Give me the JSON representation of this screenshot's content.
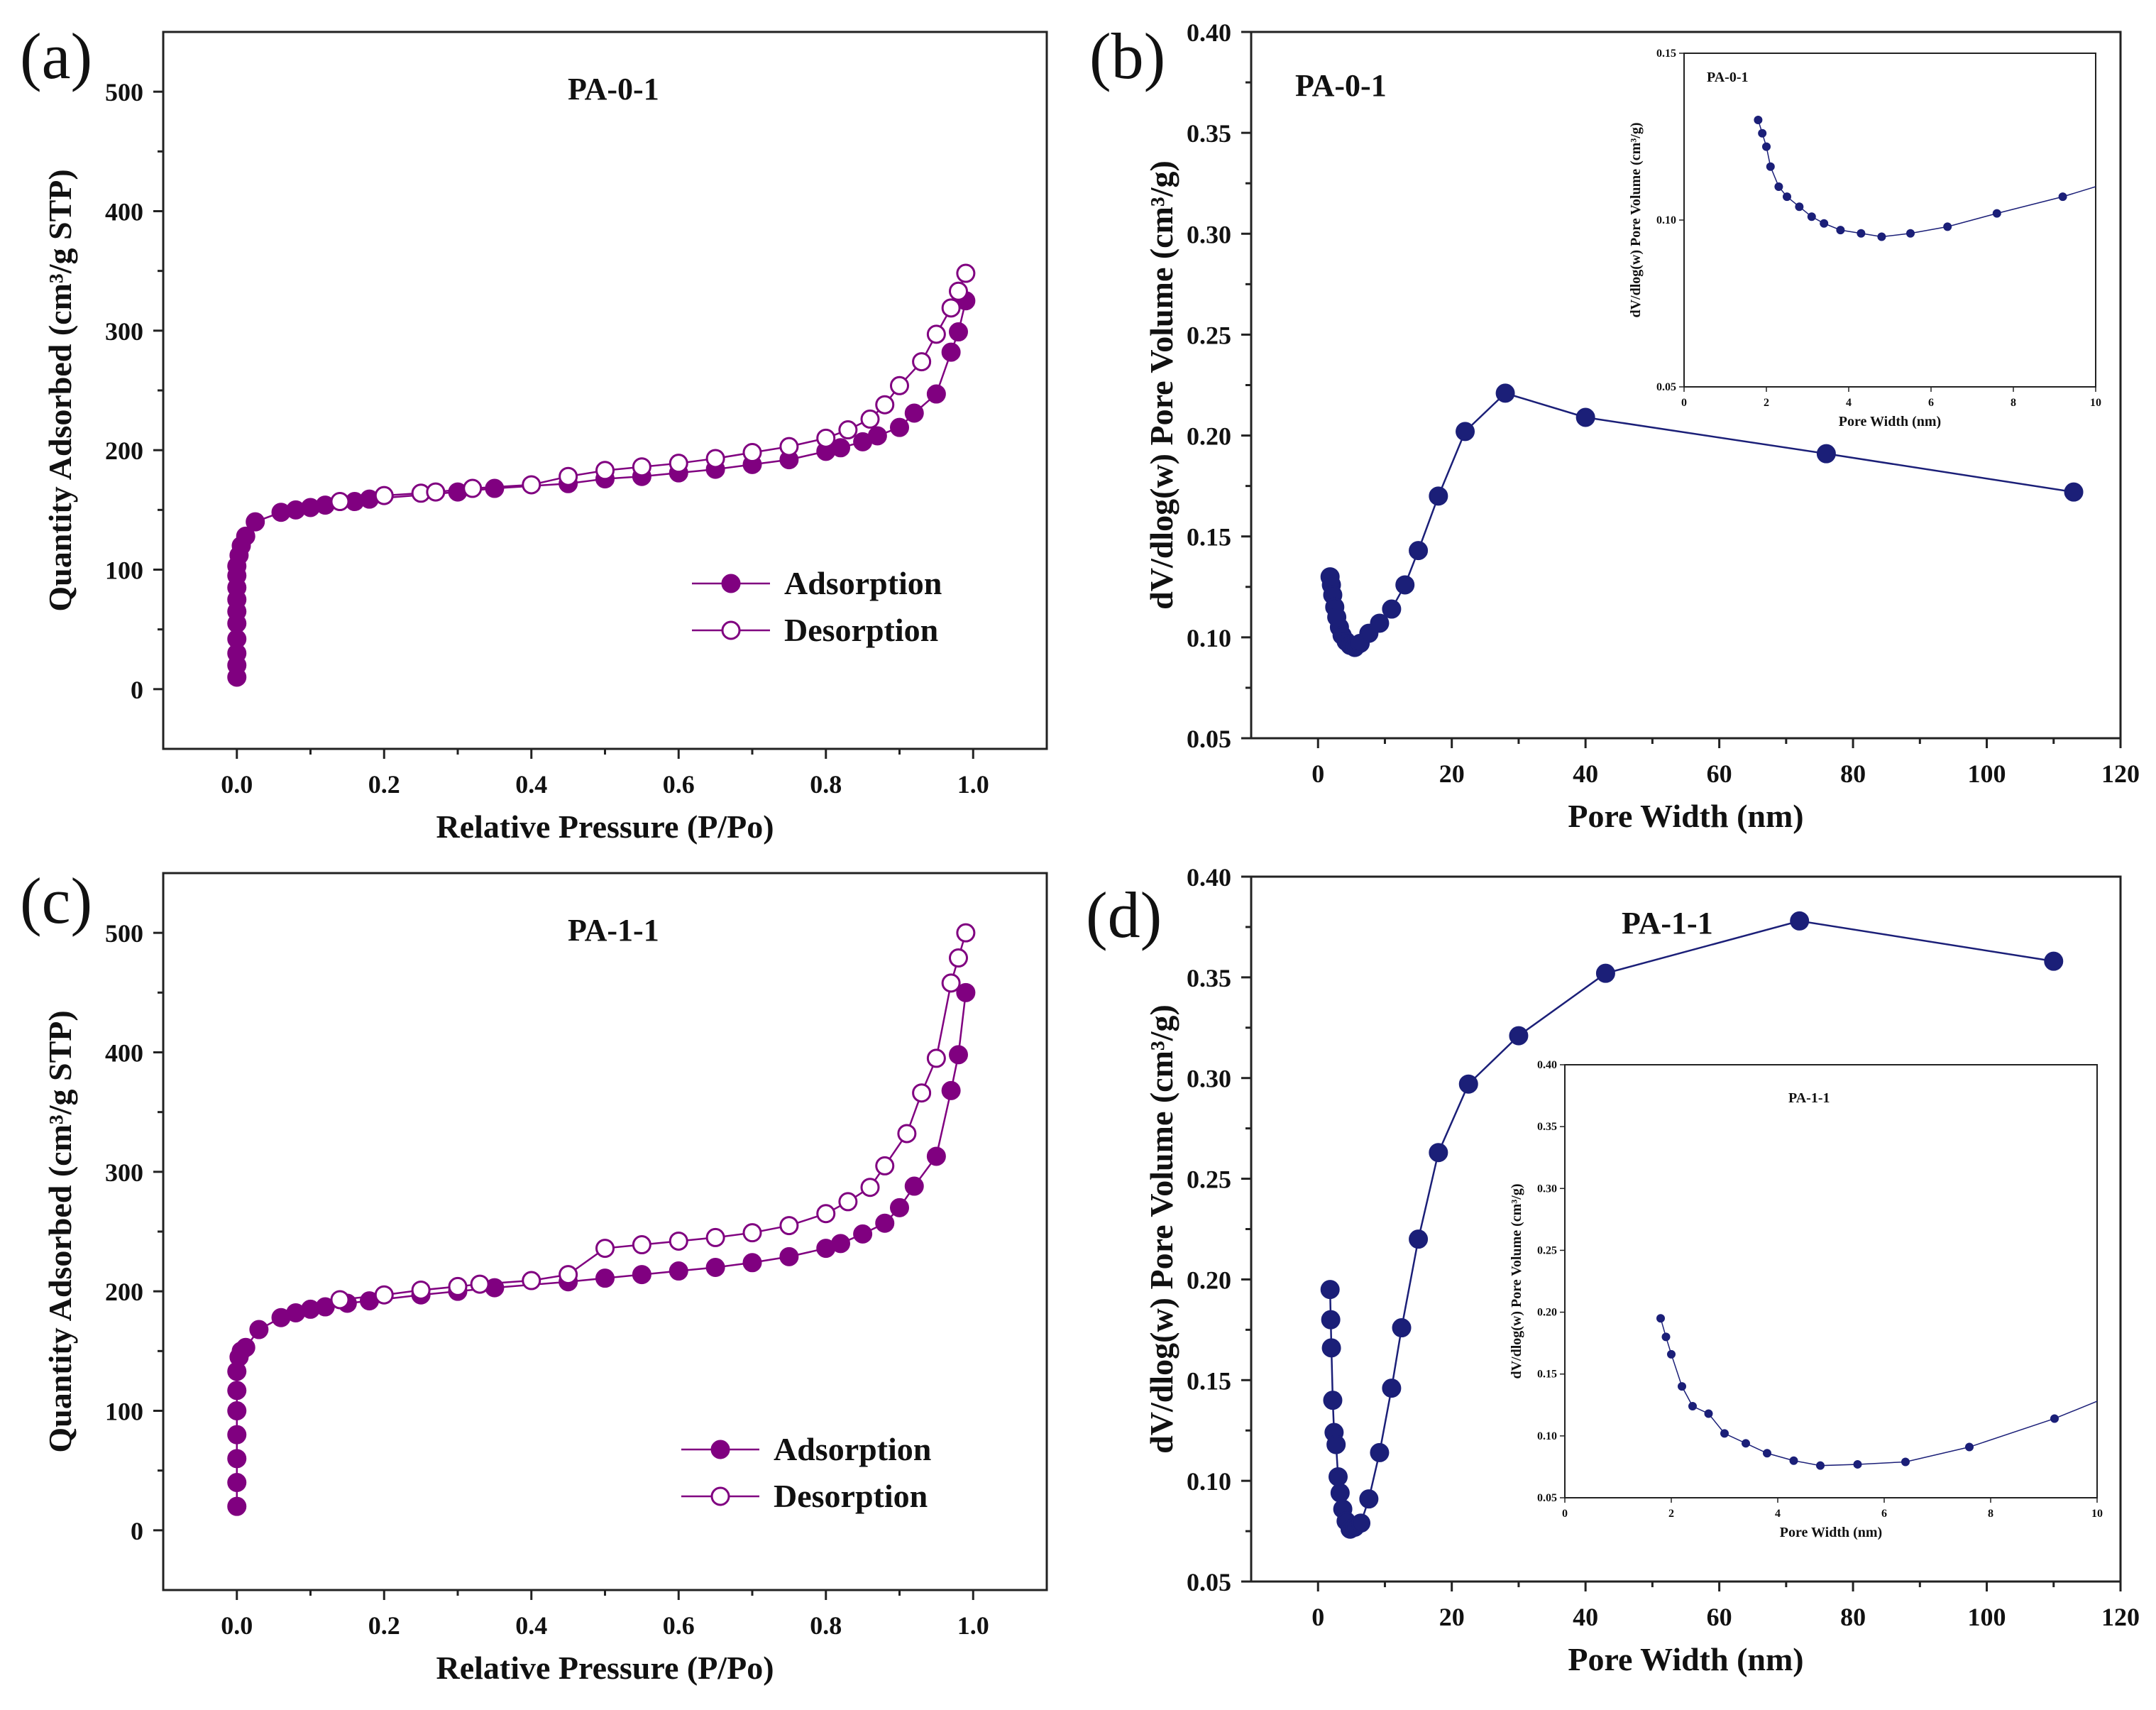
{
  "colors": {
    "iso": "#800080",
    "pore": "#1b1f78"
  },
  "chart_data": [
    {
      "id": "a",
      "letter": "(a)",
      "type": "scatter",
      "title": "PA-0-1",
      "xlabel": "Relative Pressure (P/Po)",
      "ylabel": "Quantity Adsorbed (cm³/g STP)",
      "xlim": [
        -0.1,
        1.1
      ],
      "ylim": [
        -50,
        550
      ],
      "xticks": [
        0.0,
        0.2,
        0.4,
        0.6,
        0.8,
        1.0
      ],
      "yticks": [
        0,
        100,
        200,
        300,
        400,
        500
      ],
      "legend": {
        "position": "lower-right",
        "entries": [
          "Adsorption",
          "Desorption"
        ]
      },
      "series": [
        {
          "name": "Adsorption",
          "marker": "filled",
          "x": [
            0.0,
            0.0,
            0.0,
            0.0,
            0.0,
            0.0,
            0.0,
            0.0,
            0.0,
            0.0,
            0.003,
            0.006,
            0.012,
            0.025,
            0.06,
            0.08,
            0.1,
            0.12,
            0.16,
            0.18,
            0.3,
            0.35,
            0.45,
            0.5,
            0.55,
            0.6,
            0.65,
            0.7,
            0.75,
            0.8,
            0.82,
            0.85,
            0.87,
            0.9,
            0.92,
            0.95,
            0.97,
            0.98,
            0.99
          ],
          "y": [
            10,
            20,
            30,
            42,
            55,
            65,
            75,
            85,
            95,
            103,
            112,
            120,
            128,
            140,
            148,
            150,
            152,
            154,
            157,
            159,
            165,
            168,
            172,
            176,
            178,
            181,
            184,
            188,
            192,
            199,
            202,
            207,
            212,
            219,
            231,
            247,
            282,
            299,
            325
          ]
        },
        {
          "name": "Desorption",
          "marker": "open",
          "x": [
            0.14,
            0.2,
            0.25,
            0.27,
            0.32,
            0.4,
            0.45,
            0.5,
            0.55,
            0.6,
            0.65,
            0.7,
            0.75,
            0.8,
            0.83,
            0.86,
            0.88,
            0.9,
            0.93,
            0.95,
            0.97,
            0.98,
            0.99
          ],
          "y": [
            157,
            162,
            164,
            165,
            168,
            171,
            178,
            183,
            186,
            189,
            193,
            198,
            203,
            210,
            217,
            226,
            238,
            254,
            274,
            297,
            319,
            333,
            348
          ]
        }
      ]
    },
    {
      "id": "b",
      "letter": "(b)",
      "type": "line",
      "title": "PA-0-1",
      "xlabel": "Pore Width (nm)",
      "ylabel": "dV/dlog(w) Pore Volume (cm³/g)",
      "xlim": [
        -10,
        120
      ],
      "ylim": [
        0.05,
        0.4
      ],
      "xticks": [
        0,
        20,
        40,
        60,
        80,
        100,
        120
      ],
      "yticks": [
        0.05,
        0.1,
        0.15,
        0.2,
        0.25,
        0.3,
        0.35,
        0.4
      ],
      "yticklabels": [
        "0.05",
        "0.10",
        "0.15",
        "0.20",
        "0.25",
        "0.30",
        "0.35",
        "0.40"
      ],
      "series": [
        {
          "x": [
            1.8,
            2.0,
            2.2,
            2.5,
            2.8,
            3.2,
            3.6,
            4.2,
            4.8,
            5.5,
            6.3,
            7.6,
            9.2,
            11.0,
            13.0,
            15.0,
            18.0,
            22.0,
            28.0,
            40.0,
            76.0,
            113.0
          ],
          "y": [
            0.13,
            0.126,
            0.121,
            0.115,
            0.11,
            0.105,
            0.101,
            0.098,
            0.096,
            0.095,
            0.097,
            0.102,
            0.107,
            0.114,
            0.126,
            0.143,
            0.17,
            0.202,
            0.221,
            0.209,
            0.191,
            0.172
          ]
        }
      ],
      "inset": {
        "title": "PA-0-1",
        "xlabel": "Pore Width (nm)",
        "ylabel": "dV/dlog(w) Pore Volume (cm³/g)",
        "xlim": [
          0,
          10
        ],
        "ylim": [
          0.05,
          0.15
        ],
        "xticks": [
          0,
          2,
          4,
          6,
          8,
          10
        ],
        "yticks": [
          0.05,
          0.1,
          0.15
        ],
        "yticklabels": [
          "0.05",
          "0.10",
          "0.15"
        ],
        "series": [
          {
            "x": [
              1.8,
              1.9,
              2.0,
              2.1,
              2.3,
              2.5,
              2.8,
              3.1,
              3.4,
              3.8,
              4.3,
              4.8,
              5.5,
              6.4,
              7.6,
              9.2,
              10.0
            ],
            "y": [
              0.13,
              0.126,
              0.122,
              0.116,
              0.11,
              0.107,
              0.104,
              0.101,
              0.099,
              0.097,
              0.096,
              0.095,
              0.096,
              0.098,
              0.102,
              0.107,
              0.11
            ]
          }
        ]
      }
    },
    {
      "id": "c",
      "letter": "(c)",
      "type": "scatter",
      "title": "PA-1-1",
      "xlabel": "Relative Pressure (P/Po)",
      "ylabel": "Quantity Adsorbed (cm³/g STP)",
      "xlim": [
        -0.1,
        1.1
      ],
      "ylim": [
        -50,
        550
      ],
      "xticks": [
        0.0,
        0.2,
        0.4,
        0.6,
        0.8,
        1.0
      ],
      "yticks": [
        0,
        100,
        200,
        300,
        400,
        500
      ],
      "legend": {
        "position": "lower-right",
        "entries": [
          "Adsorption",
          "Desorption"
        ]
      },
      "series": [
        {
          "name": "Adsorption",
          "marker": "filled",
          "x": [
            0.0,
            0.0,
            0.0,
            0.0,
            0.0,
            0.0,
            0.0,
            0.003,
            0.006,
            0.012,
            0.03,
            0.06,
            0.08,
            0.1,
            0.12,
            0.15,
            0.18,
            0.25,
            0.3,
            0.35,
            0.45,
            0.5,
            0.55,
            0.6,
            0.65,
            0.7,
            0.75,
            0.8,
            0.82,
            0.85,
            0.88,
            0.9,
            0.92,
            0.95,
            0.97,
            0.98,
            0.99
          ],
          "y": [
            20,
            40,
            60,
            80,
            100,
            117,
            133,
            145,
            150,
            153,
            168,
            178,
            182,
            185,
            187,
            190,
            192,
            197,
            200,
            203,
            208,
            211,
            214,
            217,
            220,
            224,
            229,
            236,
            240,
            248,
            257,
            270,
            288,
            313,
            368,
            398,
            450
          ]
        },
        {
          "name": "Desorption",
          "marker": "open",
          "x": [
            0.14,
            0.2,
            0.25,
            0.3,
            0.33,
            0.4,
            0.45,
            0.5,
            0.55,
            0.6,
            0.65,
            0.7,
            0.75,
            0.8,
            0.83,
            0.86,
            0.88,
            0.91,
            0.93,
            0.95,
            0.97,
            0.98,
            0.99
          ],
          "y": [
            193,
            197,
            201,
            204,
            206,
            209,
            214,
            236,
            239,
            242,
            245,
            249,
            255,
            265,
            275,
            287,
            305,
            332,
            366,
            395,
            458,
            479,
            500
          ]
        }
      ]
    },
    {
      "id": "d",
      "letter": "(d)",
      "type": "line",
      "title": "PA-1-1",
      "xlabel": "Pore Width (nm)",
      "ylabel": "dV/dlog(w) Pore Volume (cm³/g)",
      "xlim": [
        -10,
        120
      ],
      "ylim": [
        0.05,
        0.4
      ],
      "xticks": [
        0,
        20,
        40,
        60,
        80,
        100,
        120
      ],
      "yticks": [
        0.05,
        0.1,
        0.15,
        0.2,
        0.25,
        0.3,
        0.35,
        0.4
      ],
      "yticklabels": [
        "0.05",
        "0.10",
        "0.15",
        "0.20",
        "0.25",
        "0.30",
        "0.35",
        "0.40"
      ],
      "series": [
        {
          "x": [
            1.8,
            1.9,
            2.0,
            2.2,
            2.4,
            2.7,
            3.0,
            3.3,
            3.7,
            4.2,
            4.8,
            5.5,
            6.4,
            7.6,
            9.2,
            11.0,
            12.5,
            15.0,
            18.0,
            22.5,
            30.0,
            43.0,
            72.0,
            110.0
          ],
          "y": [
            0.195,
            0.18,
            0.166,
            0.14,
            0.124,
            0.118,
            0.102,
            0.094,
            0.086,
            0.08,
            0.076,
            0.077,
            0.079,
            0.091,
            0.114,
            0.146,
            0.176,
            0.22,
            0.263,
            0.297,
            0.321,
            0.352,
            0.378,
            0.358
          ]
        }
      ],
      "inset": {
        "title": "PA-1-1",
        "xlabel": "Pore Width (nm)",
        "ylabel": "dV/dlog(w) Pore Volume (cm³/g)",
        "xlim": [
          0,
          10
        ],
        "ylim": [
          0.05,
          0.4
        ],
        "xticks": [
          0,
          2,
          4,
          6,
          8,
          10
        ],
        "yticks": [
          0.05,
          0.1,
          0.15,
          0.2,
          0.25,
          0.3,
          0.35,
          0.4
        ],
        "yticklabels": [
          "0.05",
          "0.10",
          "0.15",
          "0.20",
          "0.25",
          "0.30",
          "0.35",
          "0.40"
        ],
        "series": [
          {
            "x": [
              1.8,
              1.9,
              2.0,
              2.2,
              2.4,
              2.7,
              3.0,
              3.4,
              3.8,
              4.3,
              4.8,
              5.5,
              6.4,
              7.6,
              9.2,
              10.0
            ],
            "y": [
              0.195,
              0.18,
              0.166,
              0.14,
              0.124,
              0.118,
              0.102,
              0.094,
              0.086,
              0.08,
              0.076,
              0.077,
              0.079,
              0.091,
              0.114,
              0.128
            ]
          }
        ]
      }
    }
  ]
}
